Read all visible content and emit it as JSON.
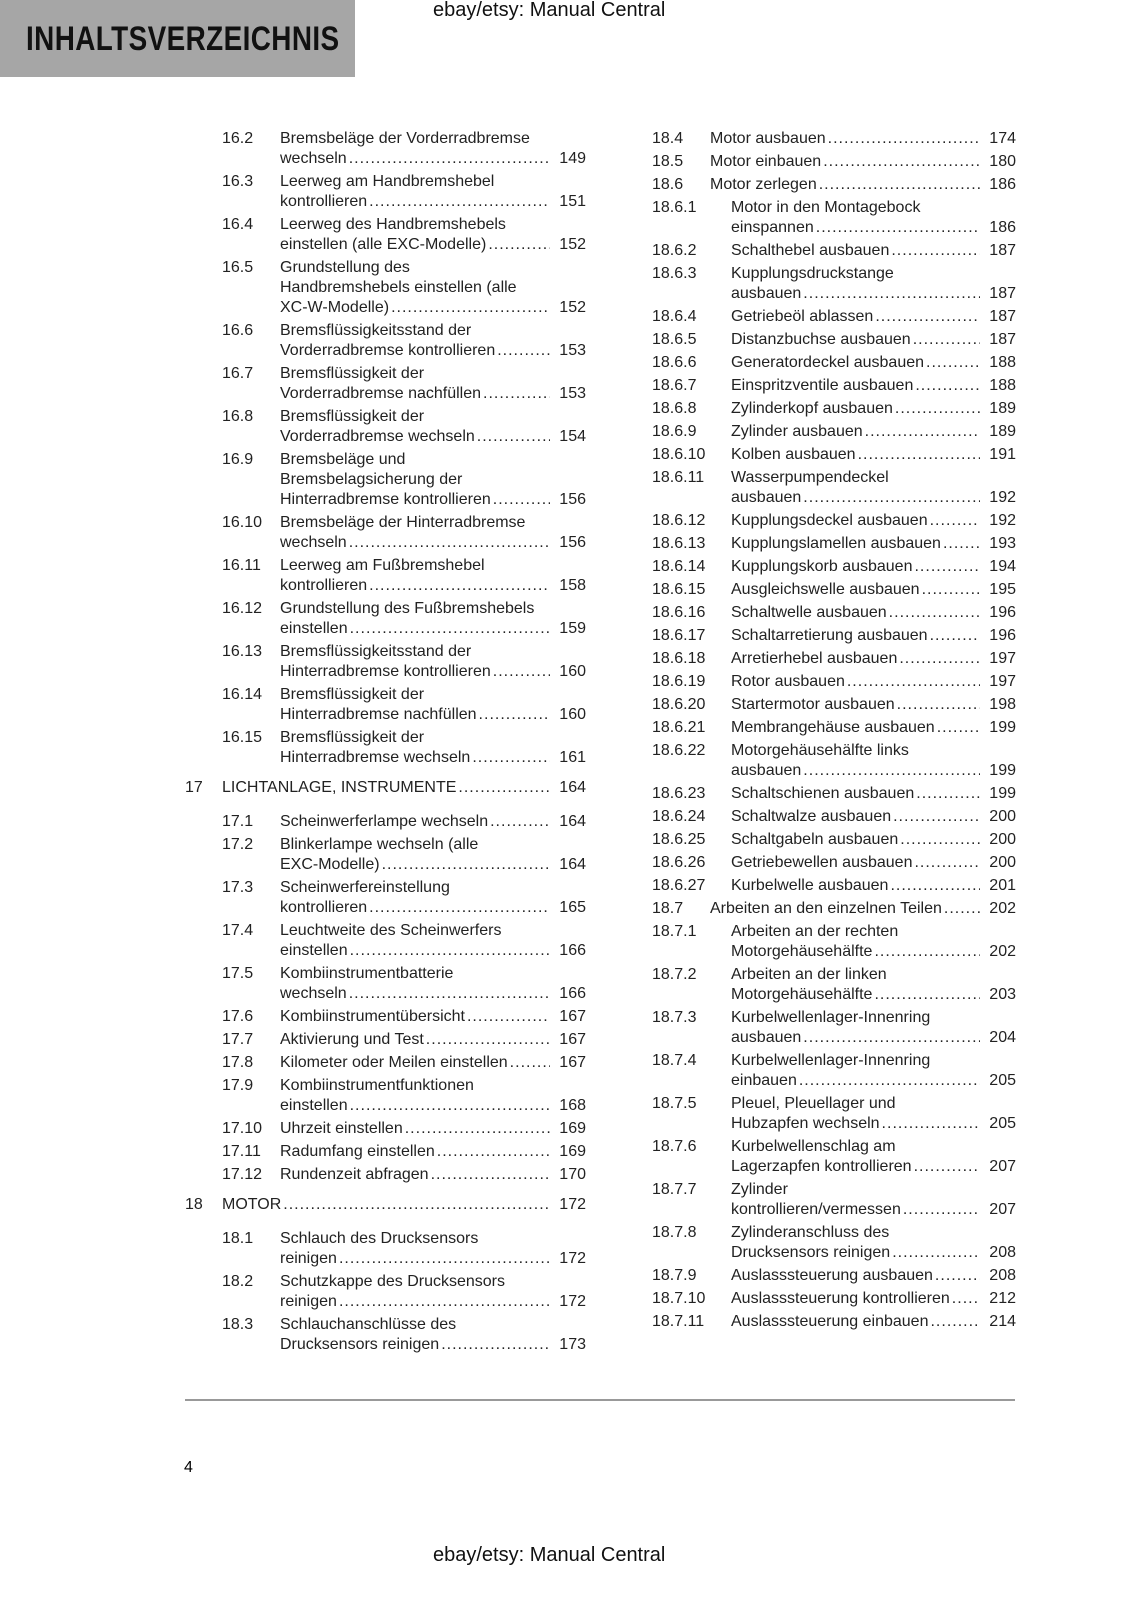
{
  "header": {
    "title": "INHALTSVERZEICHNIS",
    "watermark_top": "ebay/etsy: Manual Central"
  },
  "footer": {
    "page_number": "4",
    "watermark_bottom": "ebay/etsy: Manual Central"
  },
  "left_column": [
    {
      "num": "16.2",
      "level": 2,
      "lines": [
        "Bremsbeläge der Vorderradbremse",
        "wechseln"
      ],
      "page": "149"
    },
    {
      "num": "16.3",
      "level": 2,
      "lines": [
        "Leerweg am Handbremshebel",
        "kontrollieren"
      ],
      "page": "151"
    },
    {
      "num": "16.4",
      "level": 2,
      "lines": [
        "Leerweg des Handbremshebels",
        "einstellen (alle EXC-Modelle)"
      ],
      "page": "152"
    },
    {
      "num": "16.5",
      "level": 2,
      "lines": [
        "Grundstellung des",
        "Handbremshebels einstellen (alle",
        "XC-W-Modelle)"
      ],
      "page": "152"
    },
    {
      "num": "16.6",
      "level": 2,
      "lines": [
        "Bremsflüssigkeitsstand der",
        "Vorderradbremse kontrollieren"
      ],
      "page": "153"
    },
    {
      "num": "16.7",
      "level": 2,
      "lines": [
        "Bremsflüssigkeit der",
        "Vorderradbremse nachfüllen"
      ],
      "page": "153"
    },
    {
      "num": "16.8",
      "level": 2,
      "lines": [
        "Bremsflüssigkeit der",
        "Vorderradbremse wechseln"
      ],
      "page": "154"
    },
    {
      "num": "16.9",
      "level": 2,
      "lines": [
        "Bremsbeläge und",
        "Bremsbelagsicherung der",
        "Hinterradbremse kontrollieren"
      ],
      "page": "156"
    },
    {
      "num": "16.10",
      "level": 2,
      "lines": [
        "Bremsbeläge der Hinterradbremse",
        "wechseln"
      ],
      "page": "156"
    },
    {
      "num": "16.11",
      "level": 2,
      "lines": [
        "Leerweg am Fußbremshebel",
        "kontrollieren"
      ],
      "page": "158"
    },
    {
      "num": "16.12",
      "level": 2,
      "lines": [
        "Grundstellung des Fußbremshebels",
        "einstellen"
      ],
      "page": "159"
    },
    {
      "num": "16.13",
      "level": 2,
      "lines": [
        "Bremsflüssigkeitsstand der",
        "Hinterradbremse kontrollieren"
      ],
      "page": "160"
    },
    {
      "num": "16.14",
      "level": 2,
      "lines": [
        "Bremsflüssigkeit der",
        "Hinterradbremse nachfüllen"
      ],
      "page": "160"
    },
    {
      "num": "16.15",
      "level": 2,
      "lines": [
        "Bremsflüssigkeit der",
        "Hinterradbremse wechseln"
      ],
      "page": "161"
    },
    {
      "num": "17",
      "level": 1,
      "lines": [
        "LICHTANLAGE, INSTRUMENTE"
      ],
      "page": "164"
    },
    {
      "num": "17.1",
      "level": 2,
      "lines": [
        "Scheinwerferlampe wechseln"
      ],
      "page": "164"
    },
    {
      "num": "17.2",
      "level": 2,
      "lines": [
        "Blinkerlampe wechseln (alle",
        "EXC-Modelle)"
      ],
      "page": "164"
    },
    {
      "num": "17.3",
      "level": 2,
      "lines": [
        "Scheinwerfereinstellung",
        "kontrollieren"
      ],
      "page": "165"
    },
    {
      "num": "17.4",
      "level": 2,
      "lines": [
        "Leuchtweite des Scheinwerfers",
        "einstellen"
      ],
      "page": "166"
    },
    {
      "num": "17.5",
      "level": 2,
      "lines": [
        "Kombiinstrumentbatterie",
        "wechseln"
      ],
      "page": "166"
    },
    {
      "num": "17.6",
      "level": 2,
      "lines": [
        "Kombiinstrumentübersicht"
      ],
      "page": "167"
    },
    {
      "num": "17.7",
      "level": 2,
      "lines": [
        "Aktivierung und Test"
      ],
      "page": "167"
    },
    {
      "num": "17.8",
      "level": 2,
      "lines": [
        "Kilometer oder Meilen einstellen"
      ],
      "page": "167"
    },
    {
      "num": "17.9",
      "level": 2,
      "lines": [
        "Kombiinstrumentfunktionen",
        "einstellen"
      ],
      "page": "168"
    },
    {
      "num": "17.10",
      "level": 2,
      "lines": [
        "Uhrzeit einstellen"
      ],
      "page": "169"
    },
    {
      "num": "17.11",
      "level": 2,
      "lines": [
        "Radumfang einstellen"
      ],
      "page": "169"
    },
    {
      "num": "17.12",
      "level": 2,
      "lines": [
        "Rundenzeit abfragen"
      ],
      "page": "170"
    },
    {
      "num": "18",
      "level": 1,
      "lines": [
        "MOTOR"
      ],
      "page": "172"
    },
    {
      "num": "18.1",
      "level": 2,
      "lines": [
        "Schlauch des Drucksensors",
        "reinigen"
      ],
      "page": "172"
    },
    {
      "num": "18.2",
      "level": 2,
      "lines": [
        "Schutzkappe des Drucksensors",
        "reinigen"
      ],
      "page": "172"
    },
    {
      "num": "18.3",
      "level": 2,
      "lines": [
        "Schlauchanschlüsse des",
        "Drucksensors reinigen"
      ],
      "page": "173"
    }
  ],
  "right_column": [
    {
      "num": "18.4",
      "level": 2,
      "lines": [
        "Motor ausbauen"
      ],
      "page": "174"
    },
    {
      "num": "18.5",
      "level": 2,
      "lines": [
        "Motor einbauen"
      ],
      "page": "180"
    },
    {
      "num": "18.6",
      "level": 2,
      "lines": [
        "Motor zerlegen"
      ],
      "page": "186"
    },
    {
      "num": "18.6.1",
      "level": 3,
      "lines": [
        "Motor in den Montagebock",
        "einspannen"
      ],
      "page": "186"
    },
    {
      "num": "18.6.2",
      "level": 3,
      "lines": [
        "Schalthebel ausbauen"
      ],
      "page": "187"
    },
    {
      "num": "18.6.3",
      "level": 3,
      "lines": [
        "Kupplungsdruckstange",
        "ausbauen"
      ],
      "page": "187"
    },
    {
      "num": "18.6.4",
      "level": 3,
      "lines": [
        "Getriebeöl ablassen"
      ],
      "page": "187"
    },
    {
      "num": "18.6.5",
      "level": 3,
      "lines": [
        "Distanzbuchse ausbauen"
      ],
      "page": "187"
    },
    {
      "num": "18.6.6",
      "level": 3,
      "lines": [
        "Generatordeckel ausbauen"
      ],
      "page": "188"
    },
    {
      "num": "18.6.7",
      "level": 3,
      "lines": [
        "Einspritzventile ausbauen"
      ],
      "page": "188"
    },
    {
      "num": "18.6.8",
      "level": 3,
      "lines": [
        "Zylinderkopf ausbauen"
      ],
      "page": "189"
    },
    {
      "num": "18.6.9",
      "level": 3,
      "lines": [
        "Zylinder ausbauen"
      ],
      "page": "189"
    },
    {
      "num": "18.6.10",
      "level": 3,
      "lines": [
        "Kolben ausbauen"
      ],
      "page": "191"
    },
    {
      "num": "18.6.11",
      "level": 3,
      "lines": [
        "Wasserpumpendeckel",
        "ausbauen"
      ],
      "page": "192"
    },
    {
      "num": "18.6.12",
      "level": 3,
      "lines": [
        "Kupplungsdeckel ausbauen"
      ],
      "page": "192"
    },
    {
      "num": "18.6.13",
      "level": 3,
      "lines": [
        "Kupplungslamellen ausbauen"
      ],
      "page": "193"
    },
    {
      "num": "18.6.14",
      "level": 3,
      "lines": [
        "Kupplungskorb ausbauen"
      ],
      "page": "194"
    },
    {
      "num": "18.6.15",
      "level": 3,
      "lines": [
        "Ausgleichswelle ausbauen"
      ],
      "page": "195"
    },
    {
      "num": "18.6.16",
      "level": 3,
      "lines": [
        "Schaltwelle ausbauen"
      ],
      "page": "196"
    },
    {
      "num": "18.6.17",
      "level": 3,
      "lines": [
        "Schaltarretierung ausbauen"
      ],
      "page": "196"
    },
    {
      "num": "18.6.18",
      "level": 3,
      "lines": [
        "Arretierhebel ausbauen"
      ],
      "page": "197"
    },
    {
      "num": "18.6.19",
      "level": 3,
      "lines": [
        "Rotor ausbauen"
      ],
      "page": "197"
    },
    {
      "num": "18.6.20",
      "level": 3,
      "lines": [
        "Startermotor ausbauen"
      ],
      "page": "198"
    },
    {
      "num": "18.6.21",
      "level": 3,
      "lines": [
        "Membrangehäuse ausbauen"
      ],
      "page": "199"
    },
    {
      "num": "18.6.22",
      "level": 3,
      "lines": [
        "Motorgehäusehälfte links",
        "ausbauen"
      ],
      "page": "199"
    },
    {
      "num": "18.6.23",
      "level": 3,
      "lines": [
        "Schaltschienen ausbauen"
      ],
      "page": "199"
    },
    {
      "num": "18.6.24",
      "level": 3,
      "lines": [
        "Schaltwalze ausbauen"
      ],
      "page": "200"
    },
    {
      "num": "18.6.25",
      "level": 3,
      "lines": [
        "Schaltgabeln ausbauen"
      ],
      "page": "200"
    },
    {
      "num": "18.6.26",
      "level": 3,
      "lines": [
        "Getriebewellen ausbauen"
      ],
      "page": "200"
    },
    {
      "num": "18.6.27",
      "level": 3,
      "lines": [
        "Kurbelwelle ausbauen"
      ],
      "page": "201"
    },
    {
      "num": "18.7",
      "level": 2,
      "lines": [
        "Arbeiten an den einzelnen Teilen"
      ],
      "page": "202"
    },
    {
      "num": "18.7.1",
      "level": 3,
      "lines": [
        "Arbeiten an der rechten",
        "Motorgehäusehälfte"
      ],
      "page": "202"
    },
    {
      "num": "18.7.2",
      "level": 3,
      "lines": [
        "Arbeiten an der linken",
        "Motorgehäusehälfte"
      ],
      "page": "203"
    },
    {
      "num": "18.7.3",
      "level": 3,
      "lines": [
        "Kurbelwellenlager-Innenring",
        "ausbauen"
      ],
      "page": "204"
    },
    {
      "num": "18.7.4",
      "level": 3,
      "lines": [
        "Kurbelwellenlager-Innenring",
        "einbauen"
      ],
      "page": "205"
    },
    {
      "num": "18.7.5",
      "level": 3,
      "lines": [
        "Pleuel, Pleuellager und",
        "Hubzapfen wechseln"
      ],
      "page": "205"
    },
    {
      "num": "18.7.6",
      "level": 3,
      "lines": [
        "Kurbelwellenschlag am",
        "Lagerzapfen kontrollieren"
      ],
      "page": "207"
    },
    {
      "num": "18.7.7",
      "level": 3,
      "lines": [
        "Zylinder",
        "kontrollieren/vermessen"
      ],
      "page": "207"
    },
    {
      "num": "18.7.8",
      "level": 3,
      "lines": [
        "Zylinderanschluss des",
        "Drucksensors reinigen"
      ],
      "page": "208"
    },
    {
      "num": "18.7.9",
      "level": 3,
      "lines": [
        "Auslasssteuerung ausbauen"
      ],
      "page": "208"
    },
    {
      "num": "18.7.10",
      "level": 3,
      "lines": [
        "Auslasssteuerung kontrollieren"
      ],
      "page": "212"
    },
    {
      "num": "18.7.11",
      "level": 3,
      "lines": [
        "Auslasssteuerung einbauen"
      ],
      "page": "214"
    }
  ]
}
